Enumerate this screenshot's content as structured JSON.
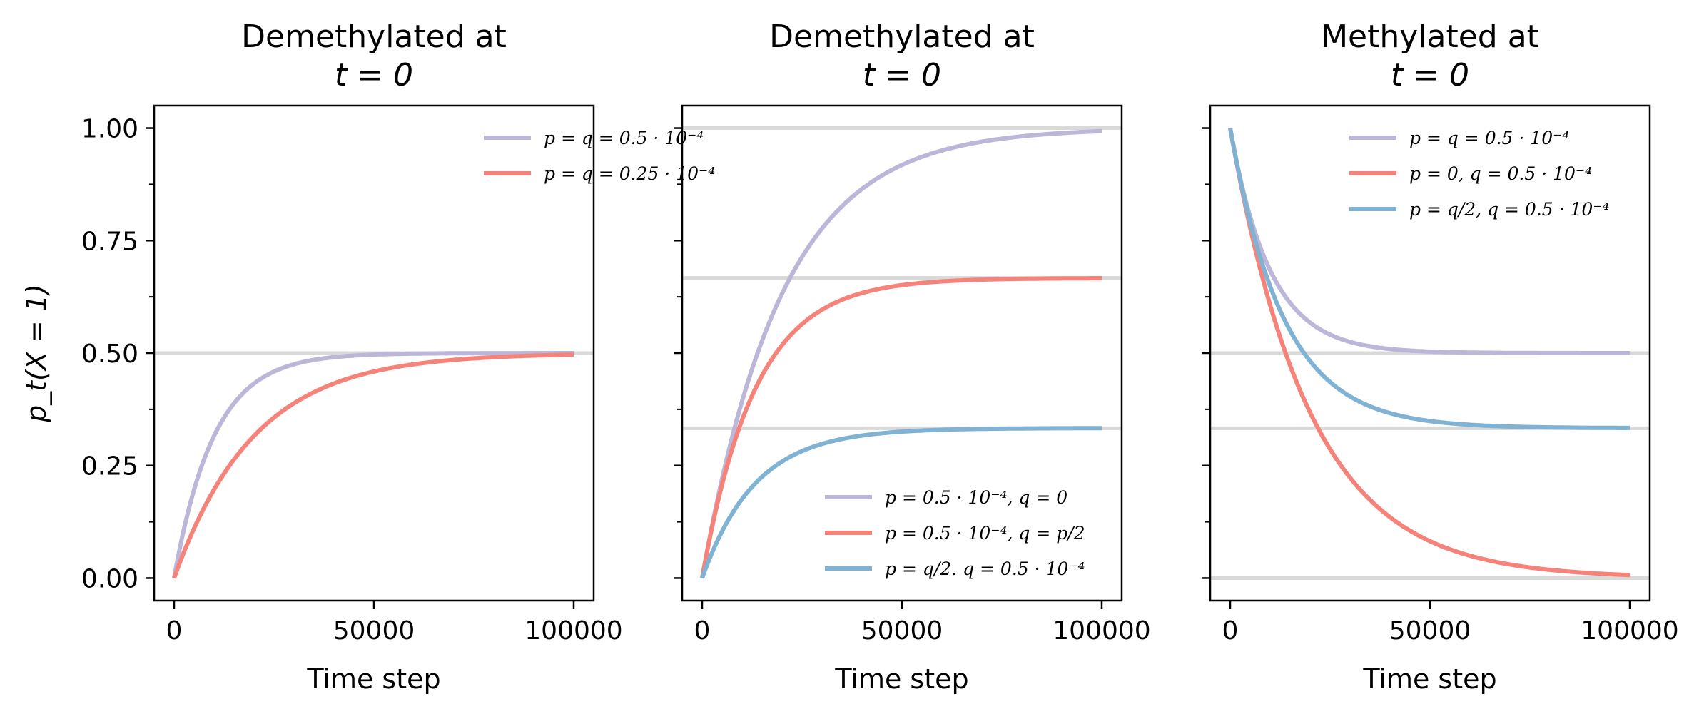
{
  "colors": {
    "purple": "#bcb6d8",
    "red": "#f6837a",
    "blue": "#80b2d3",
    "ref_line": "#d9d9d9"
  },
  "chart_data": [
    {
      "type": "line",
      "title": [
        "Demethylated at",
        "t = 0"
      ],
      "xlabel": "Time step",
      "ylabel": "p_t(X = 1)",
      "xlim": [
        -5000,
        105000
      ],
      "ylim": [
        -0.05,
        1.05
      ],
      "xticks": [
        0,
        50000,
        100000
      ],
      "xtick_labels": [
        "0",
        "50000",
        "100000"
      ],
      "yticks": [
        0,
        0.25,
        0.5,
        0.75,
        1.0
      ],
      "ytick_labels": [
        "0.00",
        "0.25",
        "0.50",
        "0.75",
        "1.00"
      ],
      "show_ytick_labels": true,
      "reference_lines": [
        0.5
      ],
      "legend_position": "upper-right",
      "series": [
        {
          "name": "p = q = 0.5 · 10⁻⁴",
          "color": "#bcb6d8",
          "initial": 0,
          "p": 5e-05,
          "q": 5e-05,
          "x": [
            0,
            5000,
            10000,
            20000,
            30000,
            50000,
            75000,
            100000
          ],
          "y": [
            0,
            0.197,
            0.316,
            0.432,
            0.475,
            0.497,
            0.5,
            0.5
          ]
        },
        {
          "name": "p = q = 0.25 · 10⁻⁴",
          "color": "#f6837a",
          "initial": 0,
          "p": 2.5e-05,
          "q": 2.5e-05,
          "x": [
            0,
            5000,
            10000,
            20000,
            30000,
            50000,
            75000,
            100000
          ],
          "y": [
            0,
            0.111,
            0.197,
            0.316,
            0.389,
            0.459,
            0.488,
            0.497
          ]
        }
      ]
    },
    {
      "type": "line",
      "title": [
        "Demethylated at",
        "t = 0"
      ],
      "xlabel": "Time step",
      "ylabel": "",
      "xlim": [
        -5000,
        105000
      ],
      "ylim": [
        -0.05,
        1.05
      ],
      "xticks": [
        0,
        50000,
        100000
      ],
      "xtick_labels": [
        "0",
        "50000",
        "100000"
      ],
      "yticks": [
        0,
        0.25,
        0.5,
        0.75,
        1.0
      ],
      "ytick_labels": [
        "",
        "",
        "",
        "",
        ""
      ],
      "show_ytick_labels": false,
      "reference_lines": [
        1.0,
        0.667,
        0.333
      ],
      "legend_position": "lower-right",
      "series": [
        {
          "name": "p = 0.5 · 10⁻⁴, q = 0",
          "color": "#bcb6d8",
          "initial": 0,
          "p": 5e-05,
          "q": 0,
          "x": [
            0,
            10000,
            20000,
            30000,
            50000,
            75000,
            100000
          ],
          "y": [
            0,
            0.393,
            0.632,
            0.777,
            0.918,
            0.976,
            0.993
          ]
        },
        {
          "name": "p = 0.5 · 10⁻⁴, q = p/2",
          "color": "#f6837a",
          "initial": 0,
          "p": 5e-05,
          "q": 2.5e-05,
          "x": [
            0,
            10000,
            20000,
            30000,
            50000,
            75000,
            100000
          ],
          "y": [
            0,
            0.351,
            0.518,
            0.601,
            0.651,
            0.664,
            0.666
          ]
        },
        {
          "name": "p = q/2. q = 0.5 · 10⁻⁴",
          "color": "#80b2d3",
          "initial": 0,
          "p": 2.5e-05,
          "q": 5e-05,
          "x": [
            0,
            10000,
            20000,
            30000,
            50000,
            75000,
            100000
          ],
          "y": [
            0,
            0.176,
            0.259,
            0.299,
            0.326,
            0.333,
            0.333
          ]
        }
      ]
    },
    {
      "type": "line",
      "title": [
        "Methylated at",
        "t = 0"
      ],
      "xlabel": "Time step",
      "ylabel": "",
      "xlim": [
        -5000,
        105000
      ],
      "ylim": [
        -0.05,
        1.05
      ],
      "xticks": [
        0,
        50000,
        100000
      ],
      "xtick_labels": [
        "0",
        "50000",
        "100000"
      ],
      "yticks": [
        0,
        0.25,
        0.5,
        0.75,
        1.0
      ],
      "ytick_labels": [
        "",
        "",
        "",
        "",
        ""
      ],
      "show_ytick_labels": false,
      "reference_lines": [
        0.5,
        0.333,
        0.0
      ],
      "legend_position": "upper-right",
      "series": [
        {
          "name": "p = q = 0.5 · 10⁻⁴",
          "color": "#bcb6d8",
          "initial": 1,
          "p": 5e-05,
          "q": 5e-05,
          "x": [
            0,
            10000,
            20000,
            30000,
            50000,
            75000,
            100000
          ],
          "y": [
            1,
            0.684,
            0.568,
            0.525,
            0.503,
            0.5,
            0.5
          ]
        },
        {
          "name": "p = 0, q = 0.5 · 10⁻⁴",
          "color": "#f6837a",
          "initial": 1,
          "p": 0,
          "q": 5e-05,
          "x": [
            0,
            10000,
            20000,
            30000,
            50000,
            75000,
            100000
          ],
          "y": [
            1,
            0.607,
            0.368,
            0.223,
            0.082,
            0.024,
            0.007
          ]
        },
        {
          "name": "p = q/2, q = 0.5 · 10⁻⁴",
          "color": "#80b2d3",
          "initial": 1,
          "p": 2.5e-05,
          "q": 5e-05,
          "x": [
            0,
            10000,
            20000,
            30000,
            50000,
            75000,
            100000
          ],
          "y": [
            1,
            0.649,
            0.482,
            0.404,
            0.349,
            0.337,
            0.334
          ]
        }
      ]
    }
  ]
}
